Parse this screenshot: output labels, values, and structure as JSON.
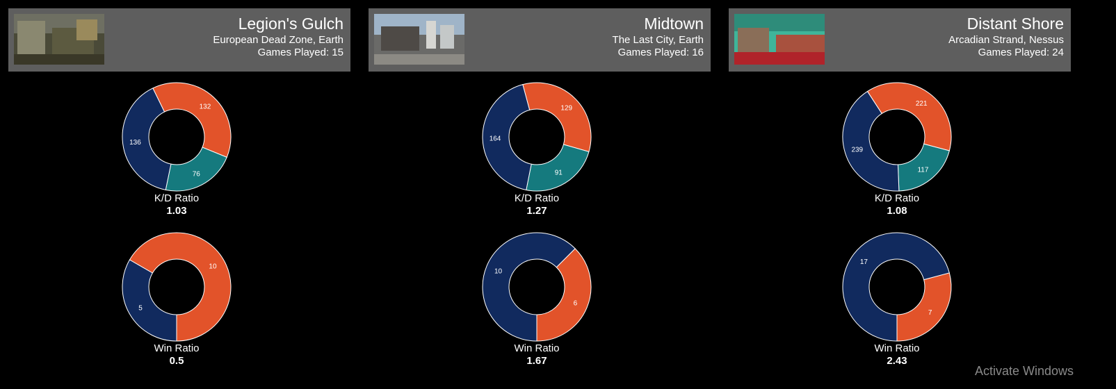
{
  "colors": {
    "background": "#000000",
    "header_bg": "#5e5e5e",
    "kills": "#e2532a",
    "assists": "#157a7e",
    "deaths": "#112a5e",
    "wins": "#112a5e",
    "losses": "#e2532a",
    "slice_border": "#ffffff"
  },
  "maps": [
    {
      "name": "Legion's Gulch",
      "location": "European Dead Zone, Earth",
      "games_played": "Games Played: 15",
      "thumb_icon": "map-thumbnail-image",
      "kd_label": "K/D Ratio",
      "kd_value": "1.03",
      "win_label": "Win Ratio",
      "win_value": "0.5"
    },
    {
      "name": "Midtown",
      "location": "The Last City, Earth",
      "games_played": "Games Played: 16",
      "thumb_icon": "map-thumbnail-image",
      "kd_label": "K/D Ratio",
      "kd_value": "1.27",
      "win_label": "Win Ratio",
      "win_value": "1.67"
    },
    {
      "name": "Distant Shore",
      "location": "Arcadian Strand, Nessus",
      "games_played": "Games Played: 24",
      "thumb_icon": "map-thumbnail-image",
      "kd_label": "K/D Ratio",
      "kd_value": "1.08",
      "win_label": "Win Ratio",
      "win_value": "2.43"
    }
  ],
  "chart_data": [
    {
      "type": "pie",
      "title": "",
      "categories": [
        "",
        "",
        ""
      ],
      "values": [
        132,
        76,
        136
      ],
      "colors": [
        "#e2532a",
        "#157a7e",
        "#112a5e"
      ],
      "start_angle_deg": -26,
      "donut": true
    },
    {
      "type": "pie",
      "title": "",
      "categories": [
        "",
        ""
      ],
      "values": [
        10,
        5
      ],
      "colors": [
        "#e2532a",
        "#112a5e"
      ],
      "start_angle_deg": -60,
      "donut": true
    },
    {
      "type": "pie",
      "title": "",
      "categories": [
        "",
        "",
        ""
      ],
      "values": [
        129,
        91,
        164
      ],
      "colors": [
        "#e2532a",
        "#157a7e",
        "#112a5e"
      ],
      "start_angle_deg": -15,
      "donut": true
    },
    {
      "type": "pie",
      "title": "",
      "categories": [
        "",
        ""
      ],
      "values": [
        6,
        10
      ],
      "colors": [
        "#e2532a",
        "#112a5e"
      ],
      "start_angle_deg": 45,
      "donut": true
    },
    {
      "type": "pie",
      "title": "",
      "categories": [
        "",
        "",
        ""
      ],
      "values": [
        221,
        117,
        239
      ],
      "colors": [
        "#e2532a",
        "#157a7e",
        "#112a5e"
      ],
      "start_angle_deg": -33,
      "donut": true
    },
    {
      "type": "pie",
      "title": "",
      "categories": [
        "",
        ""
      ],
      "values": [
        7,
        17
      ],
      "colors": [
        "#e2532a",
        "#112a5e"
      ],
      "start_angle_deg": 75,
      "donut": true
    }
  ],
  "watermark": "Activate Windows"
}
